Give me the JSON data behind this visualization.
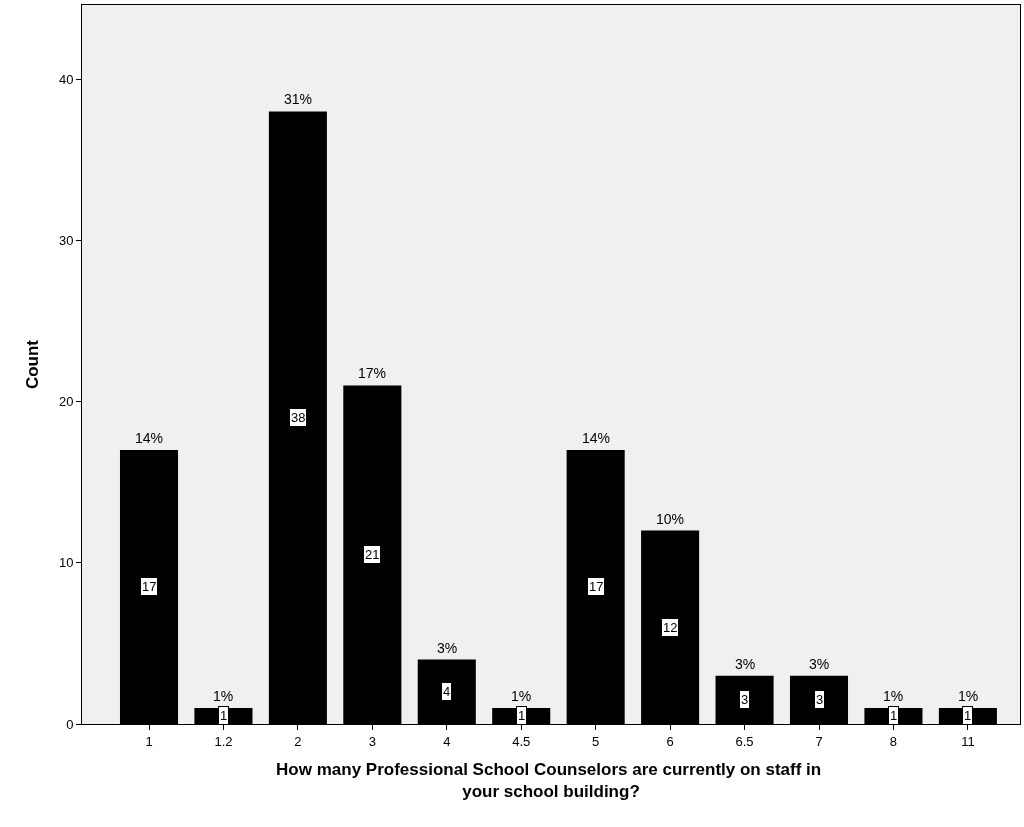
{
  "chart_data": {
    "type": "bar",
    "xlabel": "How many Professional School Counselors are currently on staff in  your school building?",
    "ylabel": "Count",
    "categories": [
      "1",
      "1.2",
      "2",
      "3",
      "4",
      "4.5",
      "5",
      "6",
      "6.5",
      "7",
      "8",
      "11"
    ],
    "values": [
      17,
      1,
      38,
      21,
      4,
      1,
      17,
      12,
      3,
      3,
      1,
      1
    ],
    "data_labels": true,
    "annotations": [
      {
        "text": "14%",
        "x": "1",
        "y": 17
      },
      {
        "text": "1%",
        "x": "1.2",
        "y": 1
      },
      {
        "text": "31%",
        "x": "2",
        "y": 38
      },
      {
        "text": "17%",
        "x": "3",
        "y": 21
      },
      {
        "text": "3%",
        "x": "4",
        "y": 4
      },
      {
        "text": "1%",
        "x": "4.5",
        "y": 1
      },
      {
        "text": "14%",
        "x": "5",
        "y": 17
      },
      {
        "text": "10%",
        "x": "6",
        "y": 12
      },
      {
        "text": "3%",
        "x": "6.5",
        "y": 3
      },
      {
        "text": "3%",
        "x": "7",
        "y": 3
      },
      {
        "text": "1%",
        "x": "8",
        "y": 1
      },
      {
        "text": "1%",
        "x": "11",
        "y": 1
      }
    ],
    "color": "#000000",
    "ylim": [
      0,
      44.6
    ],
    "yticks": [
      0,
      10,
      20,
      30,
      40
    ],
    "grid": false
  }
}
